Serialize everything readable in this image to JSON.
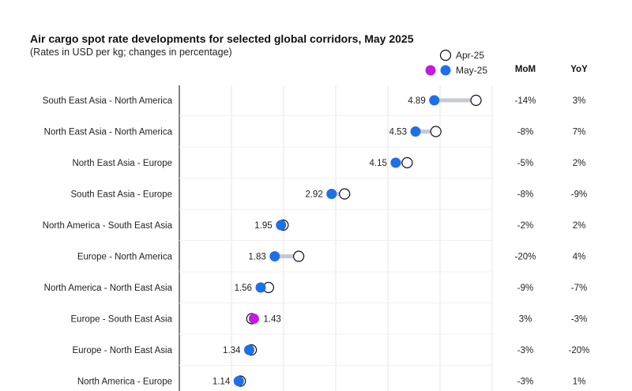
{
  "chart_data": {
    "type": "dumbbell",
    "title": "Air cargo spot rate developments for selected global corridors, May 2025",
    "subtitle": "(Rates in USD per kg; changes in percentage)",
    "legend": [
      "Apr-25",
      "May-25"
    ],
    "columns": [
      "MoM",
      "YoY"
    ],
    "xlim": [
      0,
      6
    ],
    "colors": {
      "may": "#1f6fe8",
      "may_highlight": "#c21be0",
      "apr_fill": "#ffffff",
      "apr_stroke": "#111111",
      "connector": "#c4c9d4",
      "grid": "#e6e6e6",
      "axis": "#333333"
    },
    "rows": [
      {
        "corridor": "South East Asia - North America",
        "may": 4.89,
        "apr": 5.69,
        "may_label": "4.89",
        "mom": "-14%",
        "yoy": "3%",
        "label_side": "left",
        "highlight": false
      },
      {
        "corridor": "North East Asia - North America",
        "may": 4.53,
        "apr": 4.92,
        "may_label": "4.53",
        "mom": "-8%",
        "yoy": "7%",
        "label_side": "left",
        "highlight": false
      },
      {
        "corridor": "North East Asia - Europe",
        "may": 4.15,
        "apr": 4.37,
        "may_label": "4.15",
        "mom": "-5%",
        "yoy": "2%",
        "label_side": "left",
        "highlight": false
      },
      {
        "corridor": "South East Asia - Europe",
        "may": 2.92,
        "apr": 3.17,
        "may_label": "2.92",
        "mom": "-8%",
        "yoy": "-9%",
        "label_side": "left",
        "highlight": false
      },
      {
        "corridor": "North America - South East Asia",
        "may": 1.95,
        "apr": 1.99,
        "may_label": "1.95",
        "mom": "-2%",
        "yoy": "2%",
        "label_side": "left",
        "highlight": false
      },
      {
        "corridor": "Europe - North America",
        "may": 1.83,
        "apr": 2.29,
        "may_label": "1.83",
        "mom": "-20%",
        "yoy": "4%",
        "label_side": "left",
        "highlight": false
      },
      {
        "corridor": "North America - North East Asia",
        "may": 1.56,
        "apr": 1.71,
        "may_label": "1.56",
        "mom": "-9%",
        "yoy": "-7%",
        "label_side": "left",
        "highlight": false
      },
      {
        "corridor": "Europe - South East Asia",
        "may": 1.43,
        "apr": 1.39,
        "may_label": "1.43",
        "mom": "3%",
        "yoy": "-3%",
        "label_side": "right",
        "highlight": true
      },
      {
        "corridor": "Europe - North East Asia",
        "may": 1.34,
        "apr": 1.38,
        "may_label": "1.34",
        "mom": "-3%",
        "yoy": "-20%",
        "label_side": "left",
        "highlight": false
      },
      {
        "corridor": "North America - Europe",
        "may": 1.14,
        "apr": 1.17,
        "may_label": "1.14",
        "mom": "-3%",
        "yoy": "1%",
        "label_side": "left",
        "highlight": false
      }
    ]
  }
}
